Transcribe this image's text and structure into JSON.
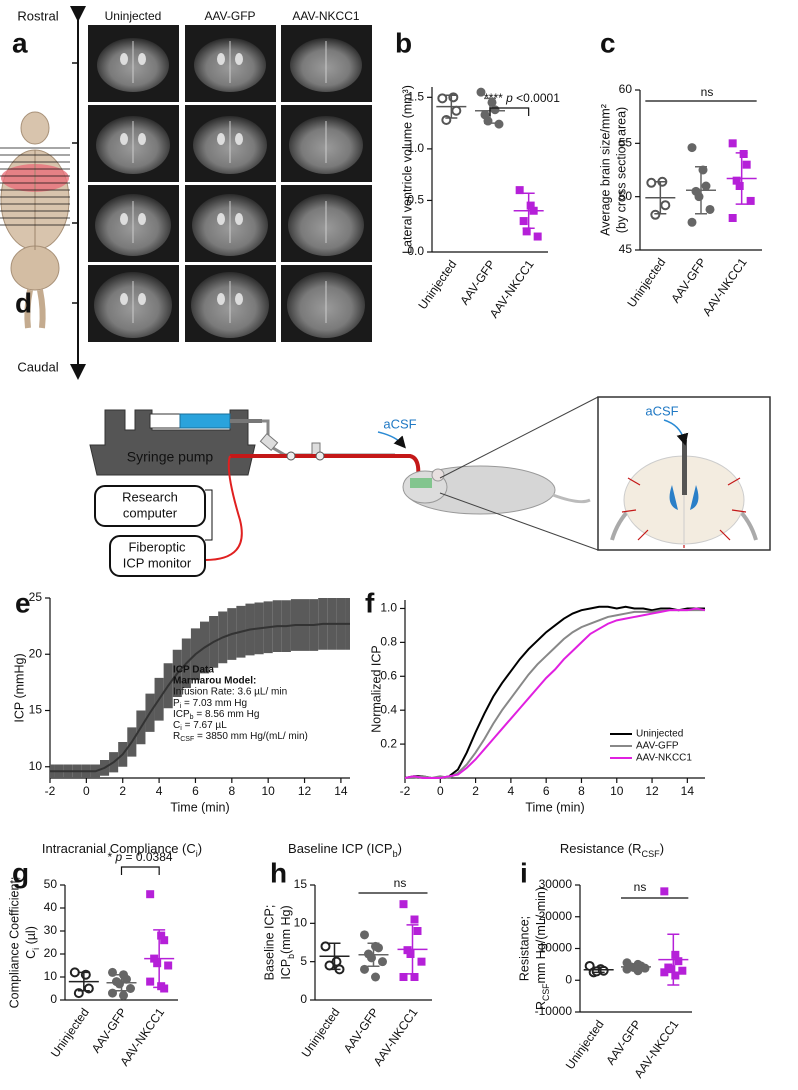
{
  "panel_a": {
    "label": "a",
    "top": "Rostral",
    "bottom": "Caudal",
    "columns": [
      "Uninjected",
      "AAV-GFP",
      "AAV-NKCC1"
    ]
  },
  "panel_d": {
    "label": "d",
    "syringe_pump": "Syringe pump",
    "computer": [
      "Research",
      "computer"
    ],
    "monitor": [
      "Fiberoptic",
      "ICP monitor"
    ],
    "infusion": "aCSF",
    "inset_infusion": "aCSF"
  },
  "chart_data": [
    {
      "label": "b",
      "type": "dot",
      "ylabel": [
        "Lateral ventricle volume (mm³)"
      ],
      "categories": [
        "Uninjected",
        "AAV-GFP",
        "AAV-NKCC1"
      ],
      "colors": [
        "#555555",
        "#666666",
        "#b520d8"
      ],
      "markers": [
        "open-circle",
        "circle",
        "square"
      ],
      "points": [
        [
          1.49,
          1.5,
          1.37,
          1.28
        ],
        [
          1.55,
          1.45,
          1.38,
          1.33,
          1.27,
          1.24
        ],
        [
          0.6,
          0.45,
          0.4,
          0.3,
          0.2,
          0.15
        ]
      ],
      "mean": [
        1.41,
        1.37,
        0.4
      ],
      "sd": [
        0.11,
        0.12,
        0.17
      ],
      "ylim": [
        0,
        1.6
      ],
      "yticks": [
        {
          "value": 0,
          "label": "0.0"
        },
        0.5,
        {
          "value": 1,
          "label": "1.0"
        },
        1.5
      ],
      "annotation": [
        "**** ",
        {
          "i": "p"
        },
        " <0.0001"
      ]
    },
    {
      "label": "c",
      "type": "dot",
      "ylabel": [
        "Average brain size/mm²",
        "(by cross section area)"
      ],
      "categories": [
        "Uninjected",
        "AAV-GFP",
        "AAV-NKCC1"
      ],
      "colors": [
        "#555555",
        "#666666",
        "#b520d8"
      ],
      "markers": [
        "open-circle",
        "circle",
        "square"
      ],
      "points": [
        [
          51.3,
          51.4,
          49.2,
          48.3
        ],
        [
          54.6,
          52.5,
          51.0,
          50.5,
          50.0,
          48.8,
          47.6
        ],
        [
          55.0,
          54.0,
          53.0,
          51.5,
          51.0,
          49.6,
          48.0
        ]
      ],
      "mean": [
        49.9,
        50.6,
        51.7
      ],
      "sd": [
        1.5,
        2.2,
        2.4
      ],
      "ylim": [
        45,
        60
      ],
      "yticks": [
        45,
        50,
        55,
        60
      ],
      "annotation": [
        "ns"
      ]
    },
    {
      "label": "e",
      "type": "line",
      "ylabel": [
        "ICP (mmHg)"
      ],
      "xlabel": "Time (min)",
      "x": [
        -2,
        -1.5,
        -1,
        -0.5,
        0,
        0.5,
        1,
        1.5,
        2,
        2.5,
        3,
        3.5,
        4,
        4.5,
        5,
        5.5,
        6,
        6.5,
        7,
        7.5,
        8,
        8.5,
        9,
        9.5,
        10,
        10.5,
        11,
        11.5,
        12,
        12.5,
        13,
        13.5,
        14,
        14.5
      ],
      "series": [
        {
          "color": "#333333",
          "band_color": "#5a5a5a",
          "values": [
            9.6,
            9.6,
            9.6,
            9.6,
            9.6,
            9.6,
            9.9,
            10.4,
            11.1,
            12.2,
            13.5,
            14.8,
            16.0,
            17.2,
            18.3,
            19.2,
            20.0,
            20.6,
            21.1,
            21.5,
            21.8,
            22.0,
            22.2,
            22.3,
            22.4,
            22.5,
            22.5,
            22.6,
            22.6,
            22.6,
            22.7,
            22.7,
            22.7,
            22.7
          ],
          "band_upper": [
            10.2,
            10.2,
            10.2,
            10.2,
            10.2,
            10.2,
            10.6,
            11.3,
            12.2,
            13.5,
            15.0,
            16.5,
            17.9,
            19.2,
            20.4,
            21.4,
            22.3,
            22.9,
            23.4,
            23.8,
            24.1,
            24.3,
            24.5,
            24.6,
            24.7,
            24.8,
            24.8,
            24.9,
            24.9,
            24.9,
            25.0,
            25.0,
            25.0,
            25.0
          ],
          "band_lower": [
            9.0,
            9.0,
            9.0,
            9.0,
            9.0,
            9.0,
            9.2,
            9.5,
            10.0,
            10.9,
            12.0,
            13.1,
            14.1,
            15.2,
            16.2,
            17.0,
            17.7,
            18.3,
            18.8,
            19.2,
            19.5,
            19.7,
            19.9,
            20.0,
            20.1,
            20.2,
            20.2,
            20.3,
            20.3,
            20.3,
            20.4,
            20.4,
            20.4,
            20.4
          ]
        }
      ],
      "xlim": [
        -2,
        14.5
      ],
      "xticks": [
        -2,
        0,
        2,
        4,
        6,
        8,
        10,
        12,
        14
      ],
      "ylim": [
        9,
        25
      ],
      "yticks": [
        10,
        15,
        20,
        25
      ],
      "annotation": [
        "ICP Data",
        "Marmarou Model:",
        "Infusion Rate: 3.6 µL/ min",
        [
          "P",
          {
            "sub": "i"
          },
          "     =  7.03 mm Hg"
        ],
        [
          "ICP",
          {
            "sub": "b"
          },
          "  = 8.56 mm Hg"
        ],
        [
          "C",
          {
            "sub": "i"
          },
          "     =  7.67 µL"
        ],
        [
          "R",
          {
            "sub": "CSF"
          },
          "   =  3850 mm Hg/(mL/ min)"
        ]
      ]
    },
    {
      "label": "f",
      "type": "line",
      "ylabel": [
        "Normalized ICP"
      ],
      "xlabel": "Time (min)",
      "legend": "bottom-right",
      "x": [
        -2,
        -1.5,
        -1,
        -0.5,
        0,
        0.5,
        1,
        1.5,
        2,
        2.5,
        3,
        3.5,
        4,
        4.5,
        5,
        5.5,
        6,
        6.5,
        7,
        7.5,
        8,
        8.5,
        9,
        9.5,
        10,
        10.5,
        11,
        11.5,
        12,
        12.5,
        13,
        13.5,
        14,
        14.5,
        15
      ],
      "series": [
        {
          "name": "Uninjected",
          "color": "#000000",
          "values": [
            0.0,
            0.01,
            0.01,
            0.0,
            0.0,
            0.01,
            0.05,
            0.15,
            0.27,
            0.38,
            0.48,
            0.56,
            0.63,
            0.7,
            0.76,
            0.81,
            0.86,
            0.9,
            0.94,
            0.97,
            0.99,
            1.0,
            1.01,
            1.01,
            1.0,
            1.01,
            1.0,
            1.0,
            0.99,
            1.0,
            1.0,
            0.99,
            1.0,
            1.0,
            1.0
          ]
        },
        {
          "name": "AAV-GFP",
          "color": "#888888",
          "values": [
            0.0,
            0.0,
            0.01,
            0.0,
            0.01,
            0.0,
            0.03,
            0.08,
            0.15,
            0.23,
            0.32,
            0.4,
            0.47,
            0.54,
            0.61,
            0.67,
            0.72,
            0.77,
            0.82,
            0.86,
            0.89,
            0.91,
            0.93,
            0.95,
            0.96,
            0.97,
            0.98,
            0.98,
            0.98,
            0.99,
            0.99,
            0.99,
            0.99,
            0.99,
            0.99
          ]
        },
        {
          "name": "AAV-NKCC1",
          "color": "#e020e0",
          "values": [
            0.0,
            0.01,
            0.0,
            0.0,
            0.0,
            0.01,
            0.02,
            0.06,
            0.11,
            0.17,
            0.23,
            0.29,
            0.35,
            0.41,
            0.47,
            0.53,
            0.59,
            0.64,
            0.7,
            0.75,
            0.8,
            0.85,
            0.88,
            0.91,
            0.93,
            0.94,
            0.95,
            0.96,
            0.97,
            0.98,
            0.99,
            0.99,
            0.99,
            1.0,
            0.99
          ]
        }
      ],
      "xlim": [
        -2,
        15
      ],
      "xticks": [
        -2,
        0,
        2,
        4,
        6,
        8,
        10,
        12,
        14
      ],
      "ylim": [
        0,
        1.05
      ],
      "yticks": [
        0.2,
        0.4,
        0.6,
        0.8,
        {
          "value": 1,
          "label": "1.0"
        }
      ]
    },
    {
      "label": "g",
      "type": "dot",
      "title": [
        "Intracranial Compliance (C",
        {
          "sub": "i"
        },
        ")"
      ],
      "ylabel": [
        "Compliance Coefficient;",
        [
          "C",
          {
            "sub": "i"
          },
          " (µl)"
        ]
      ],
      "categories": [
        "Uninjected",
        "AAV-GFP",
        "AAV-NKCC1"
      ],
      "colors": [
        "#222222",
        "#666666",
        "#b520d8"
      ],
      "markers": [
        "open-circle",
        "circle",
        "square"
      ],
      "points": [
        [
          12,
          11,
          5,
          3
        ],
        [
          12,
          11,
          9,
          8,
          7,
          5,
          3,
          2
        ],
        [
          46,
          28,
          26,
          18,
          16,
          15,
          8,
          6,
          5
        ]
      ],
      "mean": [
        8,
        7.5,
        18
      ],
      "sd": [
        4,
        3.5,
        12.5
      ],
      "ylim": [
        0,
        50
      ],
      "yticks": [
        0,
        10,
        20,
        30,
        40,
        50
      ],
      "annotation": [
        "* ",
        {
          "i": "p"
        },
        " = 0.0384"
      ]
    },
    {
      "label": "h",
      "type": "dot",
      "title": [
        "Baseline ICP (ICP",
        {
          "sub": "b"
        },
        ")"
      ],
      "ylabel": [
        "Baseline ICP;",
        [
          "ICP",
          {
            "sub": "b"
          },
          "(mm Hg)"
        ]
      ],
      "categories": [
        "Uninjected",
        "AAV-GFP",
        "AAV-NKCC1"
      ],
      "colors": [
        "#222222",
        "#666666",
        "#b520d8"
      ],
      "markers": [
        "open-circle",
        "circle",
        "square"
      ],
      "points": [
        [
          7,
          5,
          4,
          4.5
        ],
        [
          8.5,
          7,
          6.8,
          6,
          5.5,
          5,
          4,
          3
        ],
        [
          12.5,
          10.5,
          9,
          6.5,
          6,
          5,
          3,
          3
        ]
      ],
      "mean": [
        5.7,
        5.9,
        6.6
      ],
      "sd": [
        1.7,
        1.5,
        3.2
      ],
      "ylim": [
        0,
        15
      ],
      "yticks": [
        0,
        5,
        10,
        15
      ],
      "annotation": [
        "ns"
      ]
    },
    {
      "label": "i",
      "type": "dot",
      "title": [
        "Resistance (R",
        {
          "sub": "CSF"
        },
        ")"
      ],
      "ylabel": [
        "Resistance;",
        [
          "R",
          {
            "sub": "CSF"
          },
          "mm Hg/(mL/ min)"
        ]
      ],
      "categories": [
        "Uninjected",
        "AAV-GFP",
        "AAV-NKCC1"
      ],
      "colors": [
        "#222222",
        "#666666",
        "#b520d8"
      ],
      "markers": [
        "open-circle",
        "circle",
        "square"
      ],
      "points": [
        [
          4500,
          3500,
          3000,
          2500,
          2800
        ],
        [
          5500,
          5000,
          4500,
          4200,
          4000,
          3800,
          3500,
          3000
        ],
        [
          28000,
          8000,
          6000,
          4000,
          3500,
          3000,
          2500,
          1500
        ]
      ],
      "mean": [
        3300,
        4200,
        6500
      ],
      "sd": [
        800,
        800,
        8000
      ],
      "ylim": [
        -10000,
        30000
      ],
      "yticks": [
        -10000,
        0,
        10000,
        20000,
        30000
      ],
      "annotation": [
        "ns"
      ]
    }
  ]
}
